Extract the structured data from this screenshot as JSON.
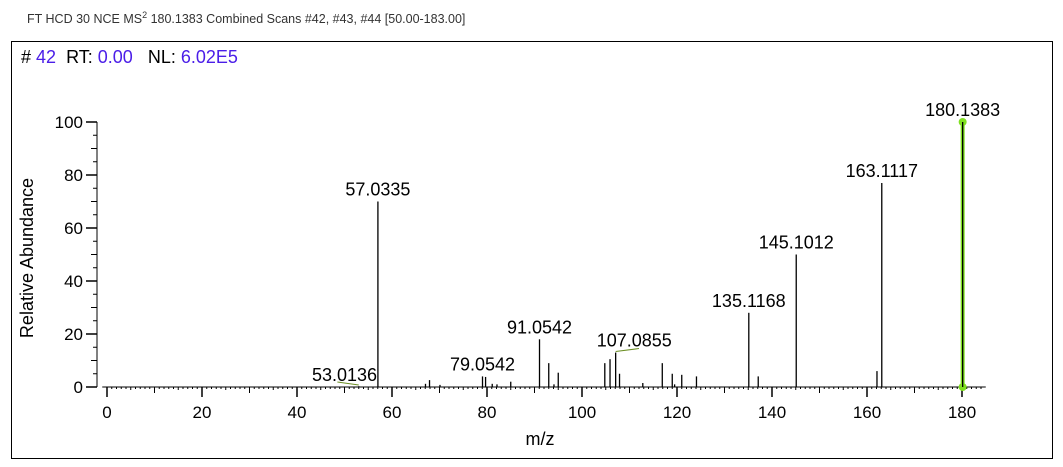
{
  "header": {
    "prefix": "FT HCD 30 NCE MS",
    "superscript": "2",
    "suffix": " 180.1383 Combined Scans #42, #43, #44 [50.00-183.00]"
  },
  "info": {
    "scan_label": "#",
    "scan": "42",
    "rt_label": "RT:",
    "rt": "0.00",
    "nl_label": "NL:",
    "nl": "6.02E5"
  },
  "colors": {
    "value": "#4b1ee8",
    "highlight": "#7fe020",
    "leader": "#6b8e23"
  },
  "chart_data": {
    "type": "bar",
    "title": "",
    "xlabel": "m/z",
    "ylabel": "Relative Abundance",
    "xlim": [
      -1,
      185
    ],
    "ylim": [
      0,
      100
    ],
    "xticks": [
      0,
      20,
      40,
      60,
      80,
      100,
      120,
      140,
      160,
      180
    ],
    "yticks": [
      0,
      20,
      40,
      60,
      80,
      100
    ],
    "peaks": [
      {
        "mz": 53.0136,
        "rel": 0.3,
        "label": "53.0136"
      },
      {
        "mz": 57.0335,
        "rel": 70,
        "label": "57.0335"
      },
      {
        "mz": 67.05,
        "rel": 1.2
      },
      {
        "mz": 67.9,
        "rel": 2.6
      },
      {
        "mz": 70.1,
        "rel": 0.8
      },
      {
        "mz": 79.0542,
        "rel": 4,
        "label": "79.0542"
      },
      {
        "mz": 79.7,
        "rel": 3.8
      },
      {
        "mz": 81.1,
        "rel": 1.2
      },
      {
        "mz": 82.1,
        "rel": 1
      },
      {
        "mz": 85.0,
        "rel": 2
      },
      {
        "mz": 91.0542,
        "rel": 18,
        "label": "91.0542"
      },
      {
        "mz": 93.0,
        "rel": 9
      },
      {
        "mz": 94.1,
        "rel": 1
      },
      {
        "mz": 95.0,
        "rel": 5.4
      },
      {
        "mz": 104.8,
        "rel": 9
      },
      {
        "mz": 105.9,
        "rel": 10.5
      },
      {
        "mz": 107.0855,
        "rel": 13,
        "label": "107.0855"
      },
      {
        "mz": 107.9,
        "rel": 5
      },
      {
        "mz": 112.8,
        "rel": 1.5
      },
      {
        "mz": 116.9,
        "rel": 9
      },
      {
        "mz": 119.0,
        "rel": 5
      },
      {
        "mz": 119.5,
        "rel": 1
      },
      {
        "mz": 121.0,
        "rel": 4.6
      },
      {
        "mz": 124.1,
        "rel": 4
      },
      {
        "mz": 135.1168,
        "rel": 28,
        "label": "135.1168"
      },
      {
        "mz": 137.1,
        "rel": 4
      },
      {
        "mz": 145.1012,
        "rel": 50,
        "label": "145.1012"
      },
      {
        "mz": 162.1,
        "rel": 6
      },
      {
        "mz": 163.1117,
        "rel": 77,
        "label": "163.1117"
      },
      {
        "mz": 180.1383,
        "rel": 100,
        "label": "180.1383",
        "highlight": true
      }
    ]
  }
}
